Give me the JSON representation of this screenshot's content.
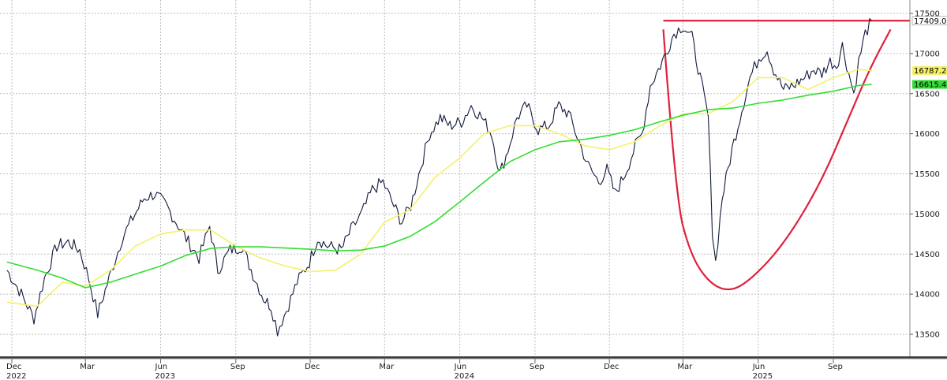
{
  "chart_data": {
    "type": "line",
    "title": "",
    "xlabel": "",
    "ylabel": "",
    "ylim": [
      13250,
      17600
    ],
    "y_ticks": [
      13500,
      14000,
      14500,
      15000,
      15500,
      16000,
      16500,
      17000,
      17500
    ],
    "grid": true,
    "x_tick_labels": [
      {
        "month": "Dec",
        "year": "2022",
        "date": "2022-12-01"
      },
      {
        "month": "Mar",
        "year": "",
        "date": "2023-03-01"
      },
      {
        "month": "Jun",
        "year": "2023",
        "date": "2023-06-01"
      },
      {
        "month": "Sep",
        "year": "",
        "date": "2023-09-01"
      },
      {
        "month": "Dec",
        "year": "",
        "date": "2023-12-01"
      },
      {
        "month": "Mar",
        "year": "",
        "date": "2024-03-01"
      },
      {
        "month": "Jun",
        "year": "2024",
        "date": "2024-06-01"
      },
      {
        "month": "Sep",
        "year": "",
        "date": "2024-09-01"
      },
      {
        "month": "Dec",
        "year": "",
        "date": "2024-12-01"
      },
      {
        "month": "Mar",
        "year": "",
        "date": "2025-03-01"
      },
      {
        "month": "Jun",
        "year": "2025",
        "date": "2025-06-01"
      },
      {
        "month": "Sep",
        "year": "",
        "date": "2025-09-01"
      }
    ],
    "series": [
      {
        "name": "",
        "kind": "price",
        "color": "#111a3a",
        "tag": "17409.039",
        "points": [
          [
            "2022-11-25",
            14300
          ],
          [
            "2022-12-10",
            14050
          ],
          [
            "2022-12-28",
            13700
          ],
          [
            "2023-01-10",
            14200
          ],
          [
            "2023-01-25",
            14600
          ],
          [
            "2023-02-08",
            14650
          ],
          [
            "2023-02-22",
            14550
          ],
          [
            "2023-03-05",
            14200
          ],
          [
            "2023-03-16",
            13750
          ],
          [
            "2023-03-30",
            14200
          ],
          [
            "2023-04-15",
            14700
          ],
          [
            "2023-04-28",
            14950
          ],
          [
            "2023-05-12",
            15200
          ],
          [
            "2023-05-25",
            15250
          ],
          [
            "2023-06-08",
            15100
          ],
          [
            "2023-06-20",
            14900
          ],
          [
            "2023-07-05",
            14650
          ],
          [
            "2023-07-18",
            14450
          ],
          [
            "2023-07-31",
            14850
          ],
          [
            "2023-08-10",
            14300
          ],
          [
            "2023-08-25",
            14550
          ],
          [
            "2023-09-08",
            14600
          ],
          [
            "2023-09-22",
            14250
          ],
          [
            "2023-10-05",
            13950
          ],
          [
            "2023-10-14",
            13850
          ],
          [
            "2023-10-22",
            13550
          ],
          [
            "2023-11-02",
            13800
          ],
          [
            "2023-11-15",
            14150
          ],
          [
            "2023-11-30",
            14400
          ],
          [
            "2023-12-10",
            14700
          ],
          [
            "2023-12-22",
            14600
          ],
          [
            "2024-01-08",
            14550
          ],
          [
            "2024-01-20",
            14800
          ],
          [
            "2024-02-02",
            15000
          ],
          [
            "2024-02-15",
            15300
          ],
          [
            "2024-02-28",
            15400
          ],
          [
            "2024-03-10",
            15150
          ],
          [
            "2024-03-22",
            14900
          ],
          [
            "2024-04-02",
            15100
          ],
          [
            "2024-04-12",
            15500
          ],
          [
            "2024-04-25",
            16000
          ],
          [
            "2024-05-08",
            16200
          ],
          [
            "2024-05-20",
            16100
          ],
          [
            "2024-06-03",
            16150
          ],
          [
            "2024-06-15",
            16350
          ],
          [
            "2024-06-28",
            16200
          ],
          [
            "2024-07-10",
            16000
          ],
          [
            "2024-07-20",
            15500
          ],
          [
            "2024-07-30",
            15800
          ],
          [
            "2024-08-10",
            16200
          ],
          [
            "2024-08-22",
            16350
          ],
          [
            "2024-09-05",
            16050
          ],
          [
            "2024-09-18",
            16100
          ],
          [
            "2024-09-30",
            16350
          ],
          [
            "2024-10-12",
            16250
          ],
          [
            "2024-10-25",
            15900
          ],
          [
            "2024-11-05",
            15600
          ],
          [
            "2024-11-18",
            15400
          ],
          [
            "2024-11-28",
            15550
          ],
          [
            "2024-12-08",
            15250
          ],
          [
            "2024-12-20",
            15500
          ],
          [
            "2025-01-02",
            15850
          ],
          [
            "2025-01-10",
            16000
          ],
          [
            "2025-01-20",
            16600
          ],
          [
            "2025-01-30",
            16800
          ],
          [
            "2025-02-08",
            17000
          ],
          [
            "2025-02-18",
            17250
          ],
          [
            "2025-03-01",
            17350
          ],
          [
            "2025-03-12",
            17200
          ],
          [
            "2025-03-22",
            16700
          ],
          [
            "2025-04-01",
            16200
          ],
          [
            "2025-04-06",
            14800
          ],
          [
            "2025-04-10",
            14400
          ],
          [
            "2025-04-18",
            15200
          ],
          [
            "2025-04-30",
            15800
          ],
          [
            "2025-05-12",
            16300
          ],
          [
            "2025-05-22",
            16700
          ],
          [
            "2025-06-02",
            16950
          ],
          [
            "2025-06-12",
            17050
          ],
          [
            "2025-06-20",
            16800
          ],
          [
            "2025-07-02",
            16550
          ],
          [
            "2025-07-14",
            16600
          ],
          [
            "2025-07-28",
            16700
          ],
          [
            "2025-08-08",
            16800
          ],
          [
            "2025-08-18",
            16750
          ],
          [
            "2025-08-28",
            16900
          ],
          [
            "2025-09-05",
            16850
          ],
          [
            "2025-09-12",
            17100
          ],
          [
            "2025-09-20",
            16750
          ],
          [
            "2025-09-26",
            16500
          ],
          [
            "2025-10-02",
            16900
          ],
          [
            "2025-10-10",
            17250
          ],
          [
            "2025-10-18",
            17409
          ]
        ]
      },
      {
        "name": "",
        "kind": "moving-average",
        "color": "#f5f06a",
        "tag": "16787.242",
        "points": [
          [
            "2022-11-25",
            13900
          ],
          [
            "2023-01-01",
            13850
          ],
          [
            "2023-02-01",
            14150
          ],
          [
            "2023-03-01",
            14100
          ],
          [
            "2023-04-01",
            14300
          ],
          [
            "2023-05-01",
            14600
          ],
          [
            "2023-06-01",
            14750
          ],
          [
            "2023-07-01",
            14800
          ],
          [
            "2023-08-01",
            14800
          ],
          [
            "2023-09-01",
            14600
          ],
          [
            "2023-10-01",
            14450
          ],
          [
            "2023-11-01",
            14350
          ],
          [
            "2023-12-01",
            14280
          ],
          [
            "2024-01-01",
            14300
          ],
          [
            "2024-02-01",
            14500
          ],
          [
            "2024-03-01",
            14900
          ],
          [
            "2024-04-01",
            15050
          ],
          [
            "2024-05-01",
            15450
          ],
          [
            "2024-06-01",
            15700
          ],
          [
            "2024-07-01",
            16000
          ],
          [
            "2024-08-01",
            16100
          ],
          [
            "2024-09-01",
            16100
          ],
          [
            "2024-10-01",
            16000
          ],
          [
            "2024-11-01",
            15850
          ],
          [
            "2024-12-01",
            15800
          ],
          [
            "2025-01-01",
            15900
          ],
          [
            "2025-02-01",
            16100
          ],
          [
            "2025-03-01",
            16250
          ],
          [
            "2025-04-01",
            16250
          ],
          [
            "2025-05-01",
            16400
          ],
          [
            "2025-06-01",
            16700
          ],
          [
            "2025-07-01",
            16700
          ],
          [
            "2025-08-01",
            16550
          ],
          [
            "2025-09-01",
            16700
          ],
          [
            "2025-10-01",
            16800
          ],
          [
            "2025-10-18",
            16787
          ]
        ]
      },
      {
        "name": "",
        "kind": "moving-average",
        "color": "#33dd33",
        "tag": "16615.447",
        "points": [
          [
            "2022-11-25",
            14400
          ],
          [
            "2023-01-01",
            14300
          ],
          [
            "2023-02-01",
            14200
          ],
          [
            "2023-03-01",
            14080
          ],
          [
            "2023-04-01",
            14150
          ],
          [
            "2023-05-01",
            14250
          ],
          [
            "2023-06-01",
            14350
          ],
          [
            "2023-07-01",
            14480
          ],
          [
            "2023-08-01",
            14570
          ],
          [
            "2023-09-01",
            14590
          ],
          [
            "2023-10-01",
            14590
          ],
          [
            "2023-12-01",
            14560
          ],
          [
            "2024-01-01",
            14540
          ],
          [
            "2024-02-01",
            14550
          ],
          [
            "2024-03-01",
            14600
          ],
          [
            "2024-04-01",
            14720
          ],
          [
            "2024-05-01",
            14900
          ],
          [
            "2024-06-01",
            15150
          ],
          [
            "2024-07-01",
            15400
          ],
          [
            "2024-08-01",
            15650
          ],
          [
            "2024-09-01",
            15800
          ],
          [
            "2024-10-01",
            15900
          ],
          [
            "2024-11-01",
            15930
          ],
          [
            "2024-12-01",
            15980
          ],
          [
            "2025-01-01",
            16050
          ],
          [
            "2025-02-01",
            16150
          ],
          [
            "2025-03-01",
            16230
          ],
          [
            "2025-04-01",
            16300
          ],
          [
            "2025-05-01",
            16320
          ],
          [
            "2025-06-01",
            16380
          ],
          [
            "2025-07-01",
            16420
          ],
          [
            "2025-08-01",
            16480
          ],
          [
            "2025-09-01",
            16530
          ],
          [
            "2025-10-01",
            16600
          ],
          [
            "2025-10-18",
            16615
          ]
        ]
      }
    ],
    "annotations": {
      "color": "#e0203c",
      "resistance_line": {
        "value": 17409,
        "from": "2025-02-05",
        "to": "2025-10-18"
      },
      "cup_curve": [
        [
          "2025-02-05",
          17300
        ],
        [
          "2025-02-20",
          15200
        ],
        [
          "2025-03-10",
          14500
        ],
        [
          "2025-04-01",
          14150
        ],
        [
          "2025-04-25",
          14030
        ],
        [
          "2025-05-20",
          14150
        ],
        [
          "2025-07-01",
          14600
        ],
        [
          "2025-08-15",
          15350
        ],
        [
          "2025-09-20",
          16200
        ],
        [
          "2025-10-15",
          16800
        ],
        [
          "2025-11-10",
          17300
        ]
      ]
    }
  }
}
